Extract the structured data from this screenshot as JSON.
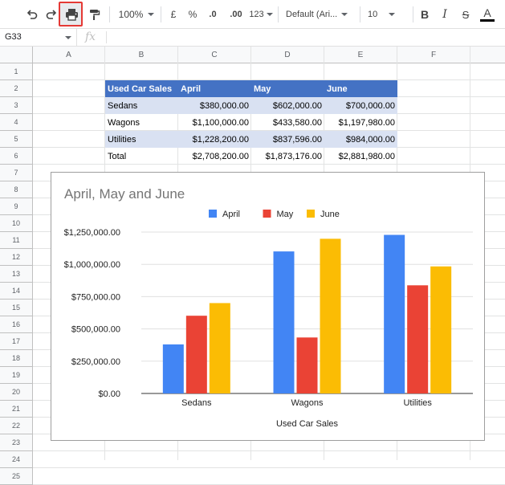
{
  "toolbar": {
    "zoom": "100%",
    "currency": "£",
    "percent": "%",
    "decrease_decimals": ".0",
    "increase_decimals": ".00",
    "more_formats": "123",
    "font": "Default (Ari...",
    "font_size": "10",
    "bold": "B",
    "italic": "I",
    "strikethrough": "S",
    "text_color": "A"
  },
  "formula_bar": {
    "name_box": "G33",
    "fx": "fx"
  },
  "columns": [
    "A",
    "B",
    "C",
    "D",
    "E",
    "F"
  ],
  "rows": [
    "1",
    "2",
    "3",
    "4",
    "5",
    "6",
    "7",
    "8",
    "9",
    "10",
    "11",
    "12",
    "13",
    "14",
    "15",
    "16",
    "17",
    "18",
    "19",
    "20",
    "21",
    "22",
    "23",
    "24",
    "25"
  ],
  "table": {
    "header": [
      "Used Car Sales",
      "April",
      "May",
      "June"
    ],
    "body": [
      [
        "Sedans",
        "$380,000.00",
        "$602,000.00",
        "$700,000.00"
      ],
      [
        "Wagons",
        "$1,100,000.00",
        "$433,580.00",
        "$1,197,980.00"
      ],
      [
        "Utilities",
        "$1,228,200.00",
        "$837,596.00",
        "$984,000.00"
      ],
      [
        "Total",
        "$2,708,200.00",
        "$1,873,176.00",
        "$2,881,980.00"
      ]
    ]
  },
  "chart_data": {
    "type": "bar",
    "title": "April, May and June",
    "xlabel": "Used Car Sales",
    "ylabel": "",
    "categories": [
      "Sedans",
      "Wagons",
      "Utilities"
    ],
    "series": [
      {
        "name": "April",
        "values": [
          380000,
          1100000,
          1228200
        ],
        "color": "#4285f4"
      },
      {
        "name": "May",
        "values": [
          602000,
          433580,
          837596
        ],
        "color": "#ea4335"
      },
      {
        "name": "June",
        "values": [
          700000,
          1197980,
          984000
        ],
        "color": "#fbbc04"
      }
    ],
    "yticks": [
      "$0.00",
      "$250,000.00",
      "$500,000.00",
      "$750,000.00",
      "$1,000,000.00",
      "$1,250,000.00"
    ],
    "ylim": [
      0,
      1250000
    ],
    "grid": true,
    "legend": "top"
  }
}
